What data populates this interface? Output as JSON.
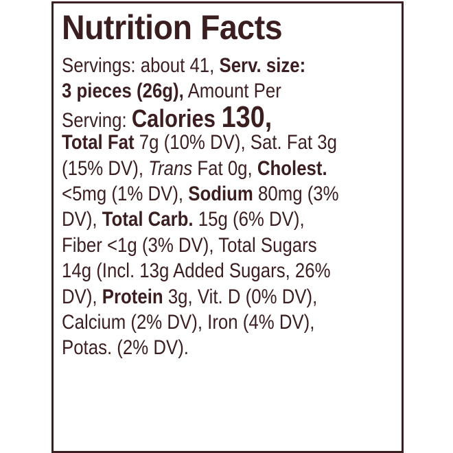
{
  "title": "Nutrition Facts",
  "lines": [
    [
      {
        "t": "Servings: about 41, "
      },
      {
        "t": "Serv. size:",
        "s": "b"
      }
    ],
    [
      {
        "t": "3 pieces (26g),",
        "s": "b"
      },
      {
        "t": " Amount Per"
      }
    ],
    [
      {
        "t": "Serving: "
      },
      {
        "t": "Calories ",
        "s": "b big2"
      },
      {
        "t": "130,",
        "s": "big"
      }
    ],
    [
      {
        "t": "Total Fat",
        "s": "b"
      },
      {
        "t": " 7g (10% DV), Sat. Fat 3g"
      }
    ],
    [
      {
        "t": "(15% DV), "
      },
      {
        "t": "Trans",
        "s": "i"
      },
      {
        "t": " Fat 0g, "
      },
      {
        "t": "Cholest.",
        "s": "b"
      }
    ],
    [
      {
        "t": "<5mg (1% DV), "
      },
      {
        "t": "Sodium",
        "s": "b"
      },
      {
        "t": " 80mg (3%"
      }
    ],
    [
      {
        "t": "DV), "
      },
      {
        "t": "Total Carb.",
        "s": "b"
      },
      {
        "t": " 15g (6% DV),"
      }
    ],
    [
      {
        "t": "Fiber <1g (3% DV), Total Sugars"
      }
    ],
    [
      {
        "t": "14g (Incl. 13g Added Sugars, 26%"
      }
    ],
    [
      {
        "t": "DV), "
      },
      {
        "t": "Protein",
        "s": "b"
      },
      {
        "t": " 3g, Vit. D (0% DV),"
      }
    ],
    [
      {
        "t": "Calcium (2% DV), Iron (4% DV),"
      }
    ],
    [
      {
        "t": "Potas. (2% DV)."
      }
    ]
  ],
  "colors": {
    "text": "#3b1f20",
    "border": "#3b1f20",
    "background": "#ffffff"
  }
}
